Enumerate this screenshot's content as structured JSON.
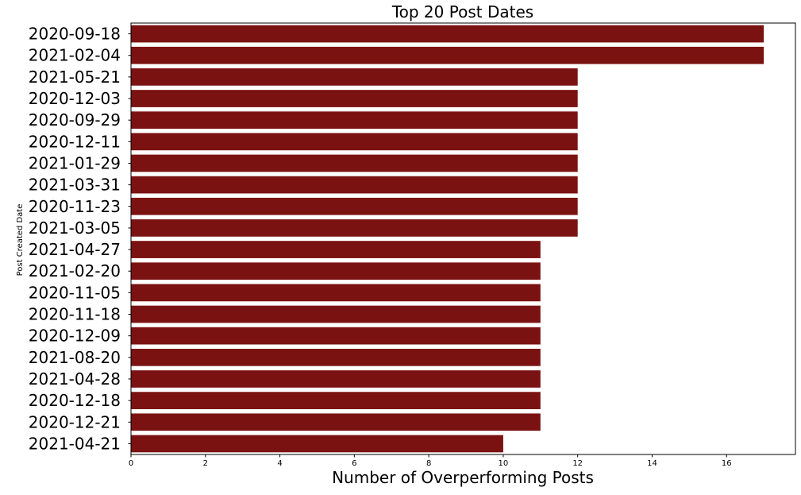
{
  "chart_data": {
    "type": "bar",
    "orientation": "horizontal",
    "title": "Top 20 Post Dates",
    "xlabel": "Number of Overperforming Posts",
    "ylabel": "Post Created Date",
    "categories": [
      "2020-09-18",
      "2021-02-04",
      "2021-05-21",
      "2020-12-03",
      "2020-09-29",
      "2020-12-11",
      "2021-01-29",
      "2021-03-31",
      "2020-11-23",
      "2021-03-05",
      "2021-04-27",
      "2021-02-20",
      "2020-11-05",
      "2020-11-18",
      "2020-12-09",
      "2021-08-20",
      "2021-04-28",
      "2020-12-18",
      "2020-12-21",
      "2021-04-21"
    ],
    "values": [
      17,
      17,
      12,
      12,
      12,
      12,
      12,
      12,
      12,
      12,
      11,
      11,
      11,
      11,
      11,
      11,
      11,
      11,
      11,
      10
    ],
    "xlim": [
      0,
      17.85
    ],
    "xticks": [
      0,
      2,
      4,
      6,
      8,
      10,
      12,
      14,
      16
    ],
    "bar_color": "#7b1212",
    "grid": false
  }
}
